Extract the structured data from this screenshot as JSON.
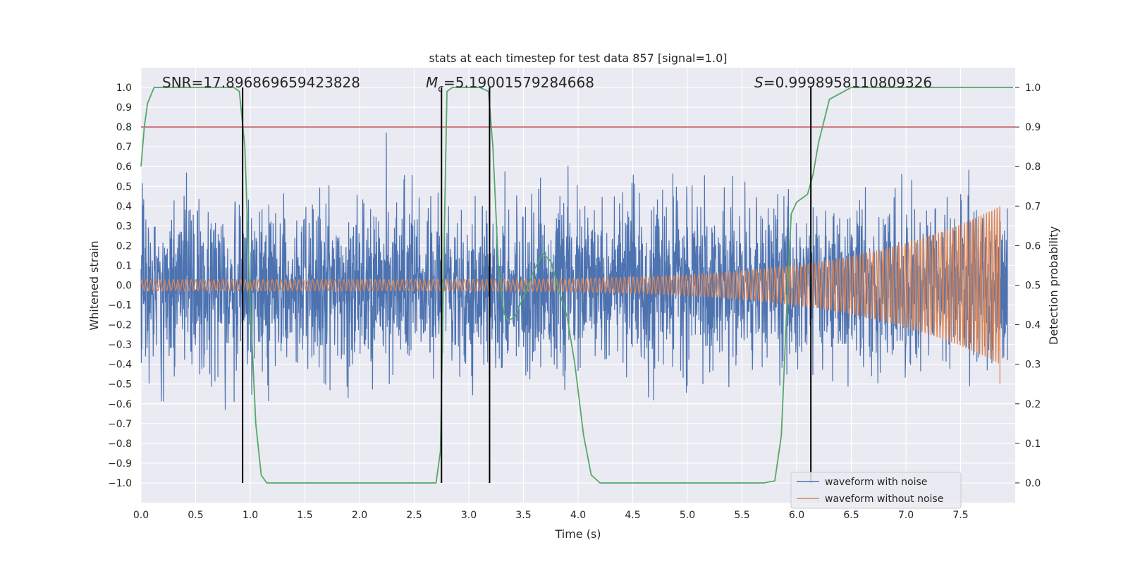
{
  "chart_data": {
    "type": "line",
    "title": "stats at each timestep for test data 857 [signal=1.0]",
    "xlabel": "Time (s)",
    "ylabel": "Whitened strain",
    "y2label": "Detection probability",
    "xlim": [
      0.0,
      8.0
    ],
    "ylim": [
      -1.1,
      1.1
    ],
    "y2lim": [
      -0.05,
      1.05
    ],
    "xticks": [
      0.0,
      0.5,
      1.0,
      1.5,
      2.0,
      2.5,
      3.0,
      3.5,
      4.0,
      4.5,
      5.0,
      5.5,
      6.0,
      6.5,
      7.0,
      7.5
    ],
    "yticks": [
      -1.0,
      -0.9,
      -0.8,
      -0.7,
      -0.6,
      -0.5,
      -0.4,
      -0.3,
      -0.2,
      -0.1,
      0.0,
      0.1,
      0.2,
      0.3,
      0.4,
      0.5,
      0.6,
      0.7,
      0.8,
      0.9,
      1.0
    ],
    "y2ticks": [
      0.0,
      0.1,
      0.2,
      0.3,
      0.4,
      0.5,
      0.6,
      0.7,
      0.8,
      0.9,
      1.0
    ],
    "annotations": [
      {
        "name": "snr",
        "text": "SNR=17.896869659423828"
      },
      {
        "name": "mc",
        "prefix": "M",
        "sub": "c",
        "text": "=5.19001579284668"
      },
      {
        "name": "s",
        "prefix": "S",
        "text": "=0.9998958110809326"
      }
    ],
    "threshold": {
      "y2": 0.9,
      "color": "#c44e52"
    },
    "vlines": [
      {
        "x": 0.93,
        "y2_from": 0.0,
        "y2_to": 1.0
      },
      {
        "x": 2.75,
        "y2_from": 0.0,
        "y2_to": 1.0
      },
      {
        "x": 3.19,
        "y2_from": 0.0,
        "y2_to": 1.0
      },
      {
        "x": 6.13,
        "y2_from": 0.0,
        "y2_to": 1.0
      }
    ],
    "noise": {
      "name": "waveform with noise",
      "color": "#4c72b0",
      "x_end": 7.93,
      "n": 3200,
      "amplitude": 0.2
    },
    "signal": {
      "name": "waveform without noise",
      "color": "#dd8452",
      "x_end": 7.86,
      "start_amplitude": 0.028,
      "end_amplitude": 0.4,
      "cycles": 225
    },
    "probability": {
      "color": "#55a868",
      "x": [
        0.0,
        0.03,
        0.06,
        0.12,
        0.2,
        0.3,
        0.5,
        0.7,
        0.85,
        0.9,
        0.95,
        1.0,
        1.05,
        1.1,
        1.15,
        1.2,
        1.4,
        2.0,
        2.5,
        2.7,
        2.74,
        2.77,
        2.8,
        2.85,
        2.9,
        3.0,
        3.1,
        3.18,
        3.22,
        3.27,
        3.32,
        3.36,
        3.42,
        3.5,
        3.6,
        3.68,
        3.75,
        3.82,
        3.9,
        3.97,
        4.05,
        4.12,
        4.2,
        4.5,
        5.0,
        5.5,
        5.7,
        5.8,
        5.86,
        5.9,
        5.95,
        6.0,
        6.05,
        6.1,
        6.15,
        6.2,
        6.3,
        6.5,
        7.0,
        7.5,
        7.98
      ],
      "y": [
        0.8,
        0.9,
        0.96,
        1.0,
        1.0,
        1.0,
        1.0,
        1.0,
        1.0,
        0.99,
        0.85,
        0.45,
        0.15,
        0.02,
        0.0,
        0.0,
        0.0,
        0.0,
        0.0,
        0.0,
        0.08,
        0.55,
        0.99,
        1.0,
        1.0,
        1.0,
        1.0,
        0.99,
        0.85,
        0.55,
        0.43,
        0.41,
        0.42,
        0.47,
        0.54,
        0.58,
        0.56,
        0.49,
        0.42,
        0.3,
        0.12,
        0.02,
        0.0,
        0.0,
        0.0,
        0.0,
        0.0,
        0.005,
        0.12,
        0.38,
        0.68,
        0.71,
        0.72,
        0.73,
        0.78,
        0.86,
        0.97,
        1.0,
        1.0,
        1.0,
        1.0
      ]
    },
    "legend": {
      "location": "lower-right",
      "entries": [
        {
          "label": "waveform with noise",
          "color": "#4c72b0"
        },
        {
          "label": "waveform without noise",
          "color": "#dd8452"
        }
      ]
    },
    "grid": true
  }
}
